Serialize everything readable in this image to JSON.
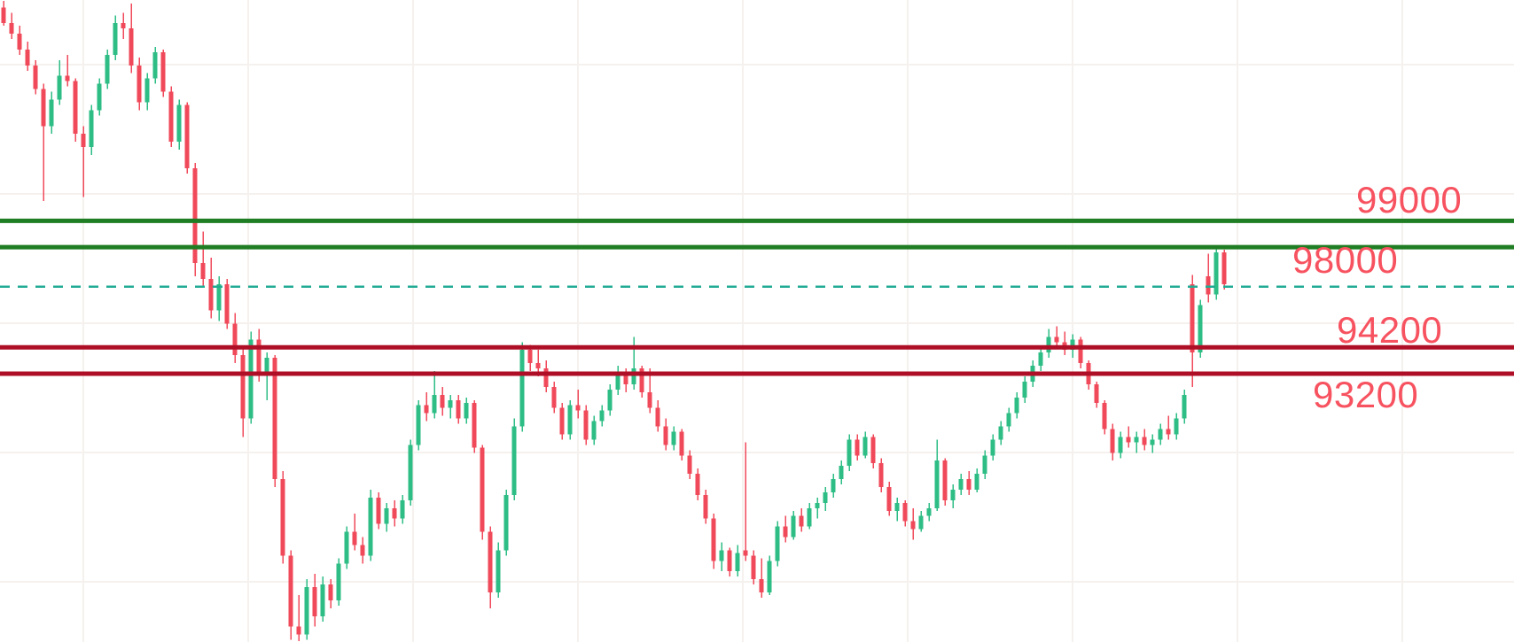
{
  "chart_data": {
    "type": "candlestick",
    "title": "",
    "grid": true,
    "legend": "none",
    "axes_visible": false,
    "visible_price_range": [
      83020,
      107380
    ],
    "up_color": "#2dbd85",
    "down_color": "#f0495a",
    "label_color": "#f7525f",
    "levels": [
      {
        "label": "99000",
        "price": 99000,
        "color": "#1f7d23",
        "line_style": "solid",
        "role": "resistance"
      },
      {
        "label": "98000",
        "price": 98000,
        "color": "#1f7d23",
        "line_style": "solid",
        "role": "resistance"
      },
      {
        "label": "94200",
        "price": 94200,
        "color": "#ae0f26",
        "line_style": "solid",
        "role": "support"
      },
      {
        "label": "93200",
        "price": 93200,
        "color": "#ae0f26",
        "line_style": "solid",
        "role": "support"
      }
    ],
    "dashed_level": {
      "price": 96500,
      "color": "#22ab94",
      "line_style": "dashed"
    },
    "candles_ohlc": [
      [
        107100,
        107350,
        106400,
        106500
      ],
      [
        106500,
        106900,
        105900,
        106100
      ],
      [
        106100,
        106400,
        105300,
        105500
      ],
      [
        105500,
        105800,
        104700,
        104900
      ],
      [
        104900,
        105100,
        103800,
        104000
      ],
      [
        104000,
        104200,
        99750,
        102600
      ],
      [
        102600,
        103900,
        102300,
        103600
      ],
      [
        103600,
        105100,
        103400,
        104500
      ],
      [
        104500,
        105300,
        104100,
        104300
      ],
      [
        104300,
        104400,
        102000,
        102300
      ],
      [
        102300,
        102600,
        99900,
        101800
      ],
      [
        101800,
        103400,
        101500,
        103200
      ],
      [
        103200,
        104400,
        103000,
        104200
      ],
      [
        104200,
        105500,
        104000,
        105300
      ],
      [
        105300,
        106800,
        105100,
        106500
      ],
      [
        106500,
        106900,
        105900,
        106300
      ],
      [
        106300,
        107250,
        104600,
        104900
      ],
      [
        104900,
        105200,
        103200,
        103500
      ],
      [
        103500,
        104600,
        103200,
        104400
      ],
      [
        104400,
        105600,
        104200,
        105400
      ],
      [
        105400,
        105500,
        103700,
        103900
      ],
      [
        103900,
        104100,
        101800,
        102000
      ],
      [
        102000,
        103600,
        101700,
        103400
      ],
      [
        103400,
        103500,
        100800,
        101000
      ],
      [
        101000,
        101200,
        96900,
        97400
      ],
      [
        97400,
        98600,
        96500,
        96800
      ],
      [
        96800,
        97600,
        95300,
        95600
      ],
      [
        95600,
        96900,
        95200,
        96600
      ],
      [
        96600,
        96800,
        94900,
        95100
      ],
      [
        95100,
        95500,
        93600,
        93900
      ],
      [
        93900,
        94200,
        90800,
        91500
      ],
      [
        91500,
        94800,
        91300,
        94500
      ],
      [
        94500,
        94900,
        92900,
        93200
      ],
      [
        93200,
        94000,
        92200,
        93800
      ],
      [
        93800,
        93900,
        88900,
        89200
      ],
      [
        89200,
        89500,
        86000,
        86300
      ],
      [
        86300,
        86500,
        83100,
        83600
      ],
      [
        83600,
        84800,
        83050,
        83300
      ],
      [
        83300,
        85400,
        83100,
        85100
      ],
      [
        85100,
        85600,
        83600,
        84000
      ],
      [
        84000,
        85500,
        83800,
        85200
      ],
      [
        85200,
        85400,
        84300,
        84600
      ],
      [
        84600,
        86200,
        84400,
        86000
      ],
      [
        86000,
        87400,
        85800,
        87200
      ],
      [
        87200,
        87900,
        86500,
        86700
      ],
      [
        86700,
        87000,
        86000,
        86300
      ],
      [
        86300,
        88800,
        86100,
        88500
      ],
      [
        88500,
        88700,
        87300,
        87500
      ],
      [
        87500,
        88300,
        87200,
        88100
      ],
      [
        88100,
        88400,
        87400,
        87700
      ],
      [
        87700,
        88600,
        87500,
        88400
      ],
      [
        88400,
        90700,
        88200,
        90500
      ],
      [
        90500,
        92200,
        90300,
        92000
      ],
      [
        92000,
        92500,
        91400,
        91700
      ],
      [
        91700,
        93300,
        91500,
        92400
      ],
      [
        92400,
        92700,
        91600,
        91900
      ],
      [
        91900,
        92400,
        91500,
        92200
      ],
      [
        92200,
        92400,
        91300,
        91500
      ],
      [
        91500,
        92300,
        91300,
        92100
      ],
      [
        92100,
        92200,
        90200,
        90400
      ],
      [
        90400,
        90500,
        86900,
        87200
      ],
      [
        87200,
        87400,
        84300,
        84900
      ],
      [
        84900,
        86800,
        84700,
        86500
      ],
      [
        86500,
        88800,
        86300,
        88600
      ],
      [
        88600,
        91500,
        88400,
        91200
      ],
      [
        91200,
        94400,
        91000,
        94100
      ],
      [
        94100,
        94300,
        93300,
        93600
      ],
      [
        93600,
        94100,
        93100,
        93400
      ],
      [
        93400,
        93700,
        92500,
        92700
      ],
      [
        92700,
        92900,
        91700,
        91900
      ],
      [
        91900,
        92100,
        90700,
        90900
      ],
      [
        90900,
        92200,
        90700,
        92000
      ],
      [
        92000,
        92600,
        91500,
        91800
      ],
      [
        91800,
        92000,
        90500,
        90700
      ],
      [
        90700,
        91600,
        90500,
        91400
      ],
      [
        91400,
        92000,
        91200,
        91800
      ],
      [
        91800,
        92800,
        91600,
        92600
      ],
      [
        92600,
        93500,
        92400,
        93200
      ],
      [
        93200,
        93400,
        92500,
        92800
      ],
      [
        92800,
        94600,
        92600,
        93400
      ],
      [
        93400,
        93500,
        92300,
        92500
      ],
      [
        92500,
        93400,
        91700,
        91900
      ],
      [
        91900,
        92200,
        91000,
        91200
      ],
      [
        91200,
        91500,
        90300,
        90500
      ],
      [
        90500,
        91200,
        90300,
        91000
      ],
      [
        91000,
        91100,
        89900,
        90100
      ],
      [
        90100,
        90300,
        89200,
        89400
      ],
      [
        89400,
        89600,
        88400,
        88600
      ],
      [
        88600,
        88800,
        87500,
        87700
      ],
      [
        87700,
        87900,
        85800,
        86100
      ],
      [
        86100,
        86800,
        85700,
        86500
      ],
      [
        86500,
        86600,
        85500,
        85700
      ],
      [
        85700,
        86700,
        85500,
        86400
      ],
      [
        86500,
        90600,
        86100,
        86300
      ],
      [
        86300,
        86500,
        85200,
        85400
      ],
      [
        85400,
        86200,
        84700,
        84900
      ],
      [
        84900,
        86300,
        84800,
        86100
      ],
      [
        86100,
        87600,
        85900,
        87400
      ],
      [
        87400,
        87800,
        86800,
        87000
      ],
      [
        87000,
        88000,
        86900,
        87800
      ],
      [
        87800,
        88100,
        87200,
        87400
      ],
      [
        87400,
        88300,
        87300,
        88100
      ],
      [
        88100,
        88500,
        87700,
        88300
      ],
      [
        88300,
        88900,
        88000,
        88700
      ],
      [
        88700,
        89400,
        88500,
        89200
      ],
      [
        89200,
        89900,
        89000,
        89700
      ],
      [
        89700,
        90900,
        89500,
        90700
      ],
      [
        90700,
        90900,
        89900,
        90100
      ],
      [
        90100,
        91000,
        90000,
        90800
      ],
      [
        90800,
        90900,
        89600,
        89800
      ],
      [
        89800,
        90000,
        88700,
        88900
      ],
      [
        88900,
        89100,
        87800,
        88000
      ],
      [
        88000,
        88500,
        87600,
        88300
      ],
      [
        88300,
        88400,
        87400,
        87600
      ],
      [
        87600,
        88100,
        86900,
        87300
      ],
      [
        87300,
        88000,
        87200,
        87800
      ],
      [
        87800,
        88300,
        87600,
        88100
      ],
      [
        88100,
        90700,
        88000,
        89900
      ],
      [
        89900,
        90000,
        88200,
        88400
      ],
      [
        88400,
        89000,
        88100,
        88800
      ],
      [
        88800,
        89400,
        88600,
        89200
      ],
      [
        89200,
        89500,
        88600,
        88800
      ],
      [
        88800,
        89600,
        88700,
        89400
      ],
      [
        89400,
        90300,
        89200,
        90100
      ],
      [
        90100,
        90900,
        89900,
        90700
      ],
      [
        90700,
        91400,
        90500,
        91200
      ],
      [
        91200,
        91900,
        91000,
        91700
      ],
      [
        91700,
        92500,
        91500,
        92300
      ],
      [
        92300,
        93100,
        92100,
        92900
      ],
      [
        92900,
        93700,
        92700,
        93500
      ],
      [
        93500,
        94200,
        93300,
        94000
      ],
      [
        94000,
        94900,
        93800,
        94600
      ],
      [
        94600,
        95000,
        94200,
        94400
      ],
      [
        94400,
        94800,
        93900,
        94100
      ],
      [
        94100,
        94700,
        93800,
        94500
      ],
      [
        94500,
        94600,
        93400,
        93600
      ],
      [
        93600,
        93700,
        92600,
        92800
      ],
      [
        92800,
        92900,
        91900,
        92100
      ],
      [
        92100,
        92200,
        90900,
        91100
      ],
      [
        91100,
        91300,
        89900,
        90200
      ],
      [
        90200,
        91000,
        90000,
        90800
      ],
      [
        90800,
        91200,
        90400,
        90600
      ],
      [
        90600,
        91000,
        90200,
        90800
      ],
      [
        90800,
        91100,
        90300,
        90500
      ],
      [
        90500,
        90900,
        90200,
        90700
      ],
      [
        90700,
        91300,
        90500,
        91100
      ],
      [
        91100,
        91600,
        90700,
        90900
      ],
      [
        90900,
        91700,
        90700,
        91500
      ],
      [
        91500,
        92600,
        91300,
        92400
      ],
      [
        96600,
        96950,
        92700,
        94000
      ],
      [
        94000,
        96000,
        93800,
        95800
      ],
      [
        96900,
        97750,
        95900,
        96200
      ],
      [
        96200,
        98050,
        96000,
        97800
      ],
      [
        97800,
        97900,
        96400,
        96600
      ]
    ]
  }
}
